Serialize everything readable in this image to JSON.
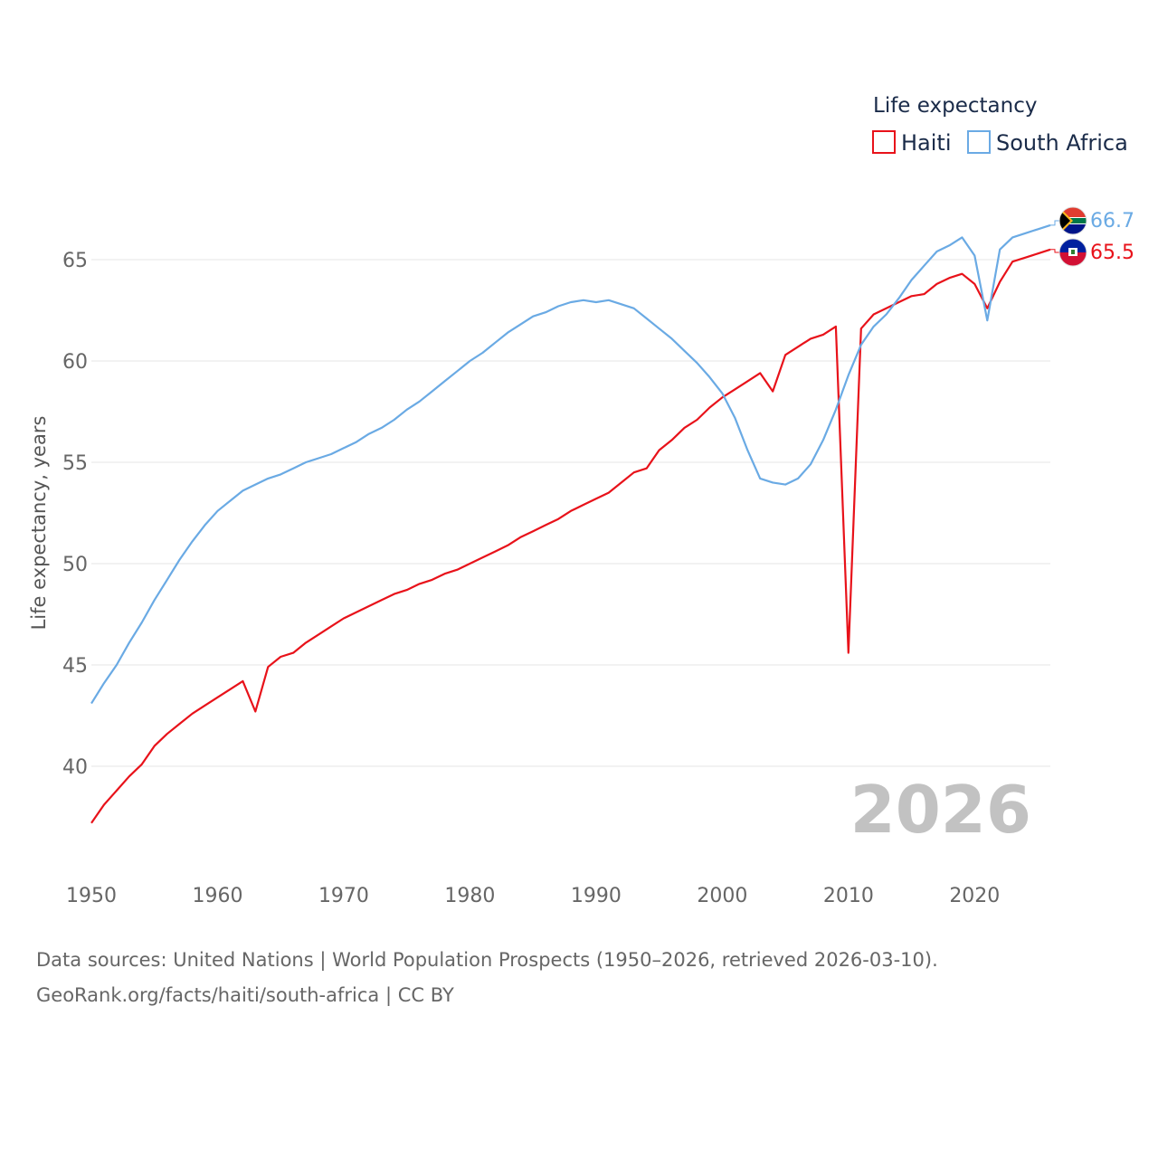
{
  "chart_data": {
    "type": "line",
    "title": "",
    "legend_title": "Life expectancy",
    "ylabel": "Life expectancy, years",
    "xlabel": "",
    "xlim": [
      1950,
      2026
    ],
    "ylim": [
      34.5,
      68
    ],
    "yticks": [
      40,
      45,
      50,
      55,
      60,
      65
    ],
    "xticks": [
      1950,
      1960,
      1970,
      1980,
      1990,
      2000,
      2010,
      2020
    ],
    "current_year": "2026",
    "legend_placement": "top-right",
    "x": [
      1950,
      1951,
      1952,
      1953,
      1954,
      1955,
      1956,
      1957,
      1958,
      1959,
      1960,
      1961,
      1962,
      1963,
      1964,
      1965,
      1966,
      1967,
      1968,
      1969,
      1970,
      1971,
      1972,
      1973,
      1974,
      1975,
      1976,
      1977,
      1978,
      1979,
      1980,
      1981,
      1982,
      1983,
      1984,
      1985,
      1986,
      1987,
      1988,
      1989,
      1990,
      1991,
      1992,
      1993,
      1994,
      1995,
      1996,
      1997,
      1998,
      1999,
      2000,
      2001,
      2002,
      2003,
      2004,
      2005,
      2006,
      2007,
      2008,
      2009,
      2010,
      2011,
      2012,
      2013,
      2014,
      2015,
      2016,
      2017,
      2018,
      2019,
      2020,
      2021,
      2022,
      2023,
      2024,
      2025,
      2026
    ],
    "series": [
      {
        "name": "Haiti",
        "color": "#e8121a",
        "end_label": "65.5",
        "values": [
          37.2,
          38.1,
          38.8,
          39.5,
          40.1,
          41.0,
          41.6,
          42.1,
          42.6,
          43.0,
          43.4,
          43.8,
          44.2,
          42.7,
          44.9,
          45.4,
          45.6,
          46.1,
          46.5,
          46.9,
          47.3,
          47.6,
          47.9,
          48.2,
          48.5,
          48.7,
          49.0,
          49.2,
          49.5,
          49.7,
          50.0,
          50.3,
          50.6,
          50.9,
          51.3,
          51.6,
          51.9,
          52.2,
          52.6,
          52.9,
          53.2,
          53.5,
          54.0,
          54.5,
          54.7,
          55.6,
          56.1,
          56.7,
          57.1,
          57.7,
          58.2,
          58.6,
          59.0,
          59.4,
          58.5,
          60.3,
          60.7,
          61.1,
          61.3,
          61.7,
          45.6,
          61.6,
          62.3,
          62.6,
          62.9,
          63.2,
          63.3,
          63.8,
          64.1,
          64.3,
          63.8,
          62.6,
          63.9,
          64.9,
          65.1,
          65.3,
          65.5
        ]
      },
      {
        "name": "South Africa",
        "color": "#6aaae4",
        "end_label": "66.7",
        "values": [
          43.1,
          44.1,
          45.0,
          46.1,
          47.1,
          48.2,
          49.2,
          50.2,
          51.1,
          51.9,
          52.6,
          53.1,
          53.6,
          53.9,
          54.2,
          54.4,
          54.7,
          55.0,
          55.2,
          55.4,
          55.7,
          56.0,
          56.4,
          56.7,
          57.1,
          57.6,
          58.0,
          58.5,
          59.0,
          59.5,
          60.0,
          60.4,
          60.9,
          61.4,
          61.8,
          62.2,
          62.4,
          62.7,
          62.9,
          63.0,
          62.9,
          63.0,
          62.8,
          62.6,
          62.1,
          61.6,
          61.1,
          60.5,
          59.9,
          59.2,
          58.4,
          57.2,
          55.6,
          54.2,
          54.0,
          53.9,
          54.2,
          54.9,
          56.1,
          57.6,
          59.3,
          60.8,
          61.7,
          62.3,
          63.1,
          64.0,
          64.7,
          65.4,
          65.7,
          66.1,
          65.2,
          62.0,
          65.5,
          66.1,
          66.3,
          66.5,
          66.7
        ]
      }
    ]
  },
  "footer": {
    "source_line": "Data sources: United Nations | World Population Prospects (1950–2026, retrieved 2026-03-10).",
    "attribution_line": "GeoRank.org/facts/haiti/south-africa | CC BY"
  }
}
